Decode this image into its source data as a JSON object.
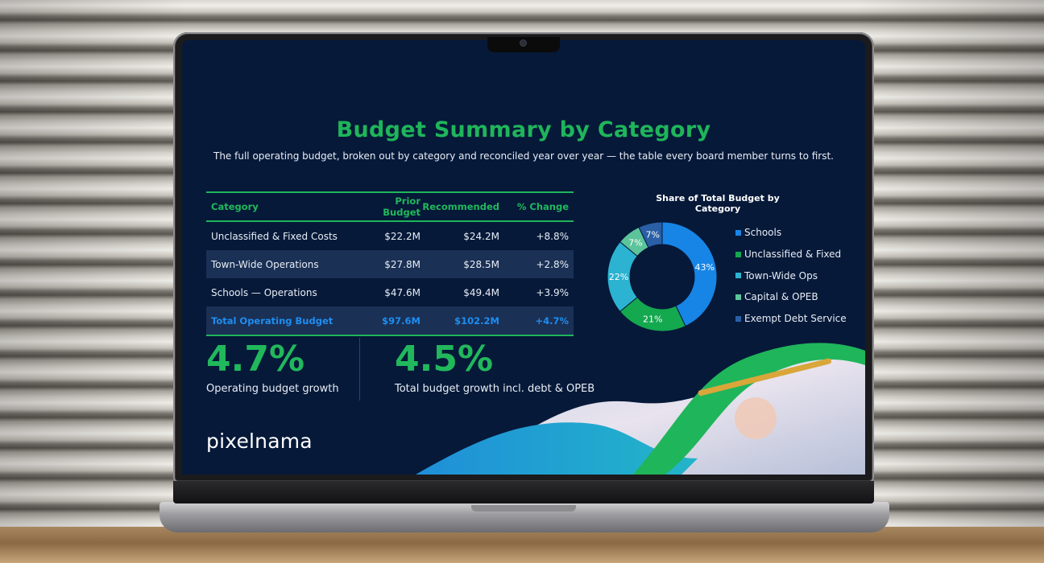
{
  "slide": {
    "title": "Budget Summary by Category",
    "subtitle": "The full operating budget, broken out by category and reconciled year over year — the table every board member turns to first."
  },
  "table": {
    "headers": [
      "Category",
      "Prior Budget",
      "Recommended",
      "% Change"
    ],
    "rows": [
      [
        "Unclassified & Fixed Costs",
        "$22.2M",
        "$24.2M",
        "+8.8%"
      ],
      [
        "Town-Wide Operations",
        "$27.8M",
        "$28.5M",
        "+2.8%"
      ],
      [
        "Schools — Operations",
        "$47.6M",
        "$49.4M",
        "+3.9%"
      ]
    ],
    "total": [
      "Total Operating Budget",
      "$97.6M",
      "$102.2M",
      "+4.7%"
    ]
  },
  "chart_data": {
    "type": "pie",
    "title": "Share of Total Budget by Category",
    "categories": [
      "Schools",
      "Unclassified & Fixed",
      "Town-Wide Ops",
      "Capital & OPEB",
      "Exempt Debt Service"
    ],
    "values": [
      43,
      21,
      22,
      7,
      7
    ],
    "labels": [
      "43%",
      "21%",
      "22%",
      "7%",
      "7%"
    ],
    "colors": [
      "#1785e6",
      "#14a84f",
      "#2cb3d1",
      "#5cc49a",
      "#2a5fa6"
    ],
    "legend": "right"
  },
  "kpis": [
    {
      "value": "4.7%",
      "label": "Operating budget growth"
    },
    {
      "value": "4.5%",
      "label": "Total budget growth incl. debt & OPEB"
    }
  ],
  "brand": {
    "logo": "pixelnama"
  },
  "colors": {
    "background": "#061939",
    "accent": "#1fb55a",
    "highlight": "#1e8ef0"
  }
}
